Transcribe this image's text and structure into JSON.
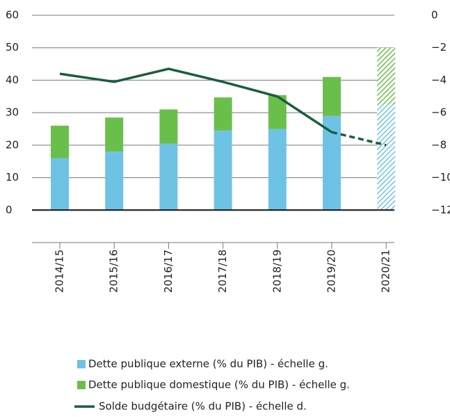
{
  "chart_data": {
    "type": "bar",
    "categories": [
      "2014/15",
      "2015/16",
      "2016/17",
      "2017/18",
      "2018/19",
      "2019/20",
      "2020/21"
    ],
    "series": [
      {
        "name": "Dette publique externe (% du PIB) - échelle g.",
        "color": "#6ec3e5",
        "values": [
          16,
          18,
          20.5,
          24.5,
          25,
          29,
          32.5
        ]
      },
      {
        "name": "Dette publique domestique (% du PIB) - échelle g.",
        "color": "#6abf4b",
        "values": [
          10,
          10.5,
          10.5,
          10.2,
          10.4,
          12,
          17.5
        ]
      },
      {
        "name": "Solde budgétaire (% du PIB) - échelle d.",
        "color": "#1a5e3c",
        "axis": "y2",
        "type": "line",
        "values": [
          -3.6,
          -4.1,
          -3.3,
          -4.1,
          -5,
          -7.2,
          -8
        ]
      }
    ],
    "forecast_index": 6,
    "ylim": [
      -10,
      60
    ],
    "yticks": [
      0,
      10,
      20,
      30,
      40,
      50,
      60
    ],
    "y2lim": [
      -14,
      0
    ],
    "y2ticks": [
      0,
      {
        "value": -2,
        "label": "−2"
      },
      {
        "value": -4,
        "label": "−4"
      },
      {
        "value": -6,
        "label": "−6"
      },
      {
        "value": -8,
        "label": "−8"
      },
      {
        "value": -10,
        "label": "−10"
      },
      {
        "value": -12,
        "label": "−12"
      }
    ],
    "grid": true
  }
}
